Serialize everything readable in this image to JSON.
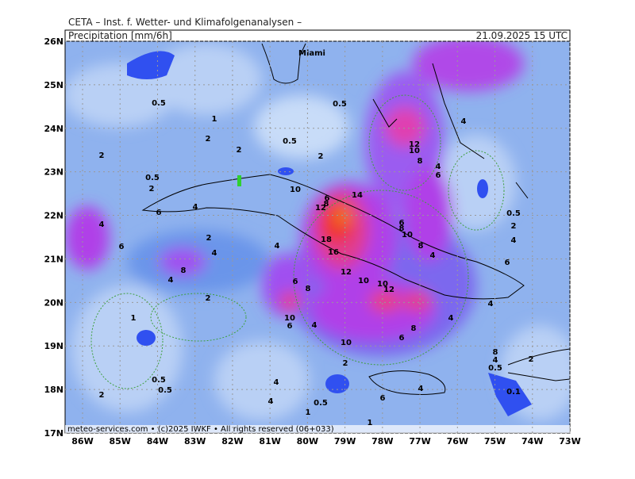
{
  "header": {
    "institute": "CETA – Inst. f. Wetter- und Klimafolgenanalysen –",
    "field": "Precipitation [mm/6h]",
    "valid": "21.09.2025 15 UTC"
  },
  "footer": "meteo-services.com • (c)2025 IWKF • All rights reserved (06+033)",
  "place": "Miami",
  "lat_ticks": [
    {
      "value": 26,
      "label": "26N"
    },
    {
      "value": 25,
      "label": "25N"
    },
    {
      "value": 24,
      "label": "24N"
    },
    {
      "value": 23,
      "label": "23N"
    },
    {
      "value": 22,
      "label": "22N"
    },
    {
      "value": 21,
      "label": "21N"
    },
    {
      "value": 20,
      "label": "20N"
    },
    {
      "value": 19,
      "label": "19N"
    },
    {
      "value": 18,
      "label": "18N"
    },
    {
      "value": 17,
      "label": "17N"
    }
  ],
  "lon_ticks": [
    {
      "value": -86,
      "label": "86W"
    },
    {
      "value": -85,
      "label": "85W"
    },
    {
      "value": -84,
      "label": "84W"
    },
    {
      "value": -83,
      "label": "83W"
    },
    {
      "value": -82,
      "label": "82W"
    },
    {
      "value": -81,
      "label": "81W"
    },
    {
      "value": -80,
      "label": "80W"
    },
    {
      "value": -79,
      "label": "79W"
    },
    {
      "value": -78,
      "label": "78W"
    },
    {
      "value": -77,
      "label": "77W"
    },
    {
      "value": -76,
      "label": "76W"
    },
    {
      "value": -75,
      "label": "75W"
    },
    {
      "value": -74,
      "label": "74W"
    },
    {
      "value": -73,
      "label": "73W"
    }
  ],
  "contour_labels": [
    0.5,
    1,
    2,
    2,
    2,
    0.5,
    2,
    0.5,
    0.5,
    2,
    10,
    14,
    6,
    8,
    12,
    6,
    4,
    4,
    2,
    6,
    4,
    4,
    18,
    16,
    12,
    10,
    8,
    4,
    6,
    8,
    10,
    12,
    2,
    10,
    6,
    4,
    10,
    6,
    8,
    4,
    12,
    10,
    8,
    4,
    4,
    6,
    6,
    8,
    10,
    8,
    4,
    0.5,
    2,
    4,
    6,
    4,
    8,
    4,
    0.5,
    2,
    0.1,
    1,
    0.5,
    0.5,
    2,
    2,
    4,
    4,
    0.5,
    1,
    6,
    4,
    1
  ]
}
